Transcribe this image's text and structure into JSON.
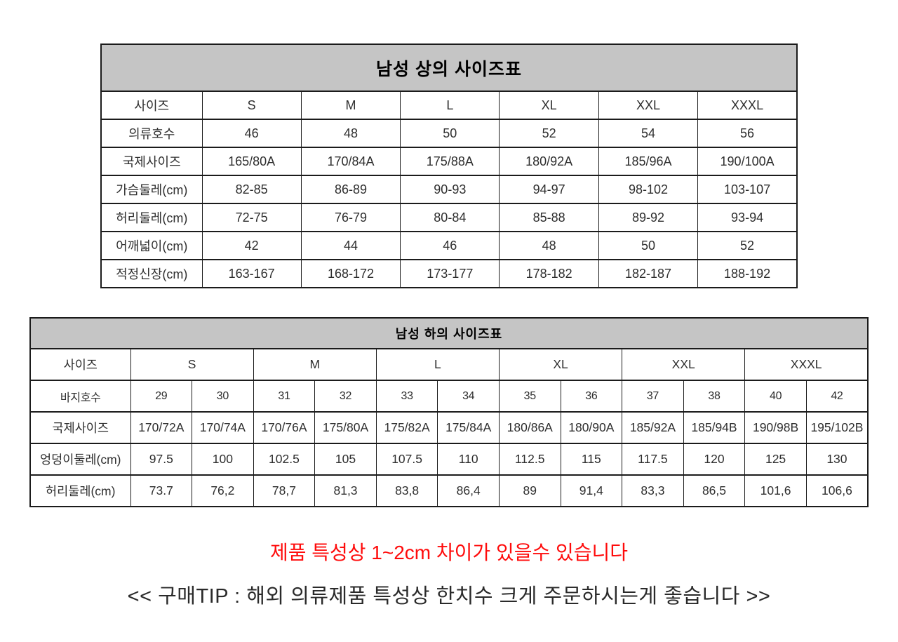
{
  "colors": {
    "header_bg": "#c5c5c5",
    "border": "#1b1b1b",
    "note_red": "#ff0b0b",
    "tip_text": "#2a2a2a"
  },
  "notes": {
    "red_disclaimer": "제품 특성상 1~2cm 차이가 있을수 있습니다",
    "purchase_tip": "<< 구매TIP : 해외 의류제품 특성상 한치수 크게 주문하시는게 좋습니다 >>"
  },
  "tables": [
    {
      "title": "남성 상의 사이즈표",
      "label_col_width": 144,
      "rows": [
        [
          "사이즈",
          "S",
          "M",
          "L",
          "XL",
          "XXL",
          "XXXL"
        ],
        [
          "의류호수",
          "46",
          "48",
          "50",
          "52",
          "54",
          "56"
        ],
        [
          "국제사이즈",
          "165/80A",
          "170/84A",
          "175/88A",
          "180/92A",
          "185/96A",
          "190/100A"
        ],
        [
          "가슴둘레(cm)",
          "82-85",
          "86-89",
          "90-93",
          "94-97",
          "98-102",
          "103-107"
        ],
        [
          "허리둘레(cm)",
          "72-75",
          "76-79",
          "80-84",
          "85-88",
          "89-92",
          "93-94"
        ],
        [
          "어깨넓이(cm)",
          "42",
          "44",
          "46",
          "48",
          "50",
          "52"
        ],
        [
          "적정신장(cm)",
          "163-167",
          "168-172",
          "173-177",
          "178-182",
          "182-187",
          "188-192"
        ]
      ]
    },
    {
      "title": "남성 하의 사이즈표",
      "label_col_width": 143,
      "rows": [
        [
          {
            "t": "사이즈"
          },
          {
            "t": "S",
            "span": 2
          },
          {
            "t": "M",
            "span": 2
          },
          {
            "t": "L",
            "span": 2
          },
          {
            "t": "XL",
            "span": 2
          },
          {
            "t": "XXL",
            "span": 2
          },
          {
            "t": "XXXL",
            "span": 2
          }
        ],
        [
          "바지호수",
          "29",
          "30",
          "31",
          "32",
          "33",
          "34",
          "35",
          "36",
          "37",
          "38",
          "40",
          "42"
        ],
        [
          "국제사이즈",
          "170/72A",
          "170/74A",
          "170/76A",
          "175/80A",
          "175/82A",
          "175/84A",
          "180/86A",
          "180/90A",
          "185/92A",
          "185/94B",
          "190/98B",
          "195/102B"
        ],
        [
          "엉덩이둘레(cm)",
          "97.5",
          "100",
          "102.5",
          "105",
          "107.5",
          "110",
          "112.5",
          "115",
          "117.5",
          "120",
          "125",
          "130"
        ],
        [
          "허리둘레(cm)",
          "73.7",
          "76,2",
          "78,7",
          "81,3",
          "83,8",
          "86,4",
          "89",
          "91,4",
          "83,3",
          "86,5",
          "101,6",
          "106,6"
        ]
      ]
    }
  ]
}
